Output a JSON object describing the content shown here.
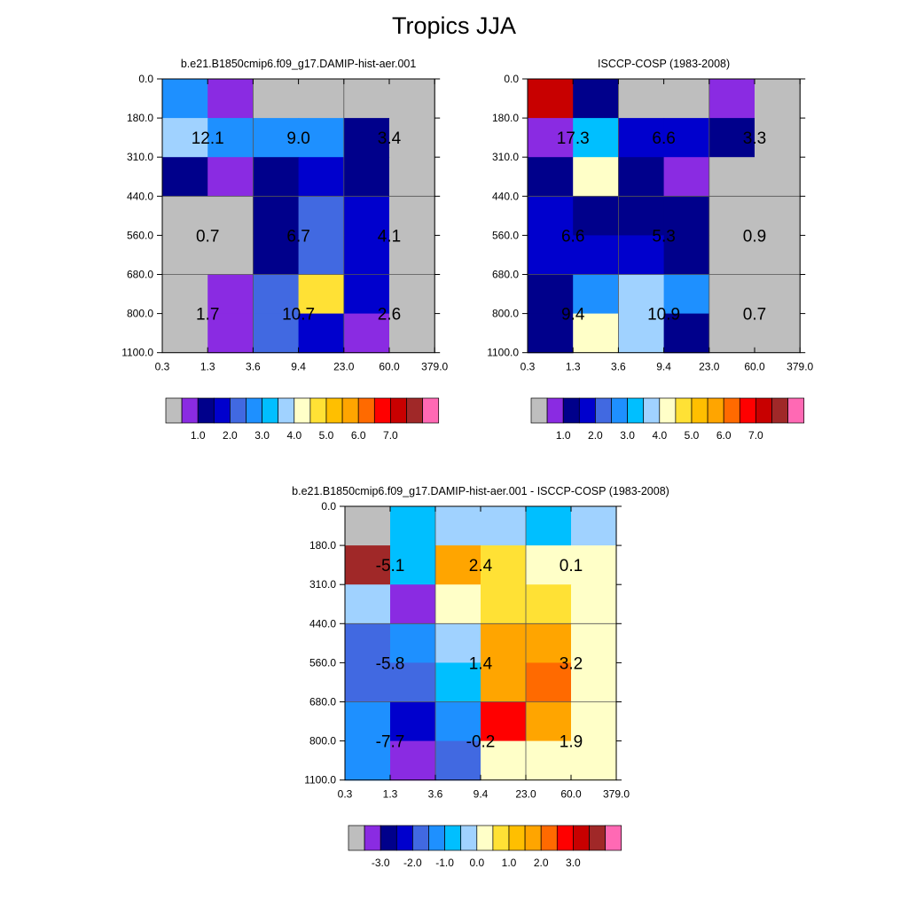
{
  "main_title": "Tropics JJA",
  "palette": [
    "#bebebe",
    "#8a2be2",
    "#00008b",
    "#0000cd",
    "#4169e1",
    "#1e90ff",
    "#00bfff",
    "#a0d2ff",
    "#ffffc8",
    "#ffe135",
    "#ffbf00",
    "#ffa500",
    "#ff6a00",
    "#ff0000",
    "#c80000",
    "#a02828",
    "#ff69b4"
  ],
  "chart_data": [
    {
      "type": "heatmap",
      "title": "b.e21.B1850cmip6.f09_g17.DAMIP-hist-aer.001",
      "x_tick_labels": [
        "0.3",
        "1.3",
        "3.6",
        "9.4",
        "23.0",
        "60.0",
        "379.0"
      ],
      "y_tick_labels": [
        "0.0",
        "180.0",
        "310.0",
        "440.0",
        "560.0",
        "680.0",
        "800.0",
        "1100.0"
      ],
      "cells": [
        [
          5,
          1,
          0,
          0,
          0,
          0
        ],
        [
          7,
          5,
          5,
          5,
          2,
          0
        ],
        [
          2,
          1,
          2,
          3,
          2,
          0
        ],
        [
          0,
          0,
          2,
          4,
          3,
          0
        ],
        [
          0,
          0,
          2,
          4,
          3,
          0
        ],
        [
          0,
          1,
          4,
          9,
          3,
          0
        ],
        [
          0,
          1,
          4,
          3,
          1,
          0
        ]
      ],
      "group_labels": [
        [
          "12.1",
          "9.0",
          "3.4"
        ],
        [
          "0.7",
          "6.7",
          "4.1"
        ],
        [
          "1.7",
          "10.7",
          "2.6"
        ]
      ],
      "colorbar": {
        "labels": [
          "1.0",
          "2.0",
          "3.0",
          "4.0",
          "5.0",
          "6.0",
          "7.0"
        ]
      }
    },
    {
      "type": "heatmap",
      "title": "ISCCP-COSP (1983-2008)",
      "x_tick_labels": [
        "0.3",
        "1.3",
        "3.6",
        "9.4",
        "23.0",
        "60.0",
        "379.0"
      ],
      "y_tick_labels": [
        "0.0",
        "180.0",
        "310.0",
        "440.0",
        "560.0",
        "680.0",
        "800.0",
        "1100.0"
      ],
      "cells": [
        [
          14,
          2,
          0,
          0,
          1,
          0
        ],
        [
          1,
          6,
          3,
          3,
          2,
          0
        ],
        [
          2,
          8,
          2,
          1,
          0,
          0
        ],
        [
          3,
          2,
          2,
          2,
          0,
          0
        ],
        [
          3,
          3,
          3,
          2,
          0,
          0
        ],
        [
          2,
          5,
          7,
          5,
          0,
          0
        ],
        [
          2,
          8,
          7,
          2,
          0,
          0
        ]
      ],
      "group_labels": [
        [
          "17.3",
          "6.6",
          "3.3"
        ],
        [
          "6.6",
          "5.3",
          "0.9"
        ],
        [
          "9.4",
          "10.9",
          "0.7"
        ]
      ],
      "colorbar": {
        "labels": [
          "1.0",
          "2.0",
          "3.0",
          "4.0",
          "5.0",
          "6.0",
          "7.0"
        ]
      }
    },
    {
      "type": "heatmap",
      "title": "b.e21.B1850cmip6.f09_g17.DAMIP-hist-aer.001 - ISCCP-COSP (1983-2008)",
      "x_tick_labels": [
        "0.3",
        "1.3",
        "3.6",
        "9.4",
        "23.0",
        "60.0",
        "379.0"
      ],
      "y_tick_labels": [
        "0.0",
        "180.0",
        "310.0",
        "440.0",
        "560.0",
        "680.0",
        "800.0",
        "1100.0"
      ],
      "cells": [
        [
          0,
          6,
          7,
          7,
          6,
          7
        ],
        [
          15,
          6,
          11,
          9,
          8,
          8
        ],
        [
          7,
          1,
          8,
          9,
          9,
          8
        ],
        [
          4,
          5,
          7,
          11,
          11,
          8
        ],
        [
          4,
          4,
          6,
          11,
          12,
          8
        ],
        [
          5,
          3,
          5,
          13,
          11,
          8
        ],
        [
          5,
          1,
          4,
          8,
          8,
          8
        ]
      ],
      "group_labels": [
        [
          "-5.1",
          "2.4",
          "0.1"
        ],
        [
          "-5.8",
          "1.4",
          "3.2"
        ],
        [
          "-7.7",
          "-0.2",
          "1.9"
        ]
      ],
      "colorbar": {
        "labels": [
          "-3.0",
          "-2.0",
          "-1.0",
          "0.0",
          "1.0",
          "2.0",
          "3.0"
        ]
      }
    }
  ]
}
